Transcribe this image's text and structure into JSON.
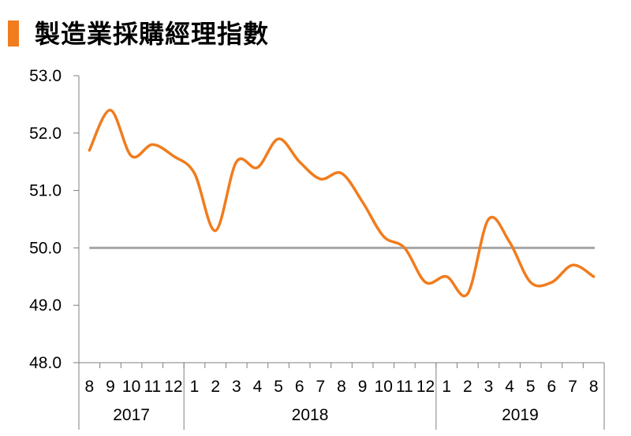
{
  "title": "製造業採購經理指數",
  "colors": {
    "accent": "#F07C1E",
    "line": "#F07C1E",
    "reference": "#A6A6A6",
    "axis": "#7F7F7F"
  },
  "chart_data": {
    "type": "line",
    "title": "製造業採購經理指數",
    "xlabel": "",
    "ylabel": "",
    "ylim": [
      48.0,
      53.0
    ],
    "yticks": [
      "48.0",
      "49.0",
      "50.0",
      "51.0",
      "52.0",
      "53.0"
    ],
    "reference_line": 50.0,
    "grid": false,
    "categories": [
      "8",
      "9",
      "10",
      "11",
      "12",
      "1",
      "2",
      "3",
      "4",
      "5",
      "6",
      "7",
      "8",
      "9",
      "10",
      "11",
      "12",
      "1",
      "2",
      "3",
      "4",
      "5",
      "6",
      "7",
      "8"
    ],
    "groups": [
      {
        "label": "2017",
        "count": 5
      },
      {
        "label": "2018",
        "count": 12
      },
      {
        "label": "2019",
        "count": 8
      }
    ],
    "series": [
      {
        "values": [
          51.7,
          52.4,
          51.6,
          51.8,
          51.6,
          51.3,
          50.3,
          51.5,
          51.4,
          51.9,
          51.5,
          51.2,
          51.3,
          50.8,
          50.2,
          50.0,
          49.4,
          49.5,
          49.2,
          50.5,
          50.1,
          49.4,
          49.4,
          49.7,
          49.5
        ]
      }
    ]
  }
}
